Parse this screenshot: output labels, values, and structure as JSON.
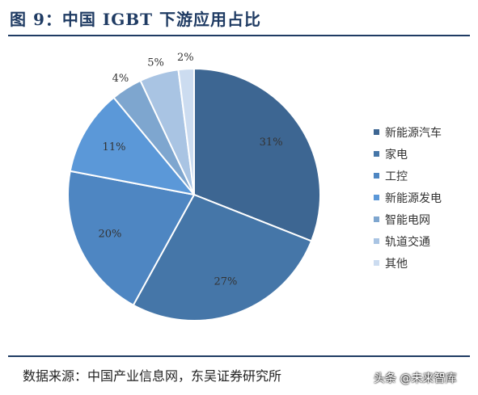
{
  "figure": {
    "title": "图 9：中国 IGBT 下游应用占比",
    "source": "数据来源：中国产业信息网，东吴证券研究所",
    "watermark": "头条 @未来智库"
  },
  "chart_data": {
    "type": "pie",
    "categories": [
      "新能源汽车",
      "家电",
      "工控",
      "新能源发电",
      "智能电网",
      "轨道交通",
      "其他"
    ],
    "values": [
      31,
      27,
      20,
      11,
      4,
      5,
      2
    ],
    "labels": [
      "31%",
      "27%",
      "20%",
      "11%",
      "4%",
      "5%",
      "2%"
    ],
    "colors": [
      "#3d6692",
      "#4576a8",
      "#4e86c2",
      "#5b98d8",
      "#7ea6cf",
      "#a9c4e3",
      "#ccdcf0"
    ],
    "legend_position": "right",
    "unit": "%"
  }
}
